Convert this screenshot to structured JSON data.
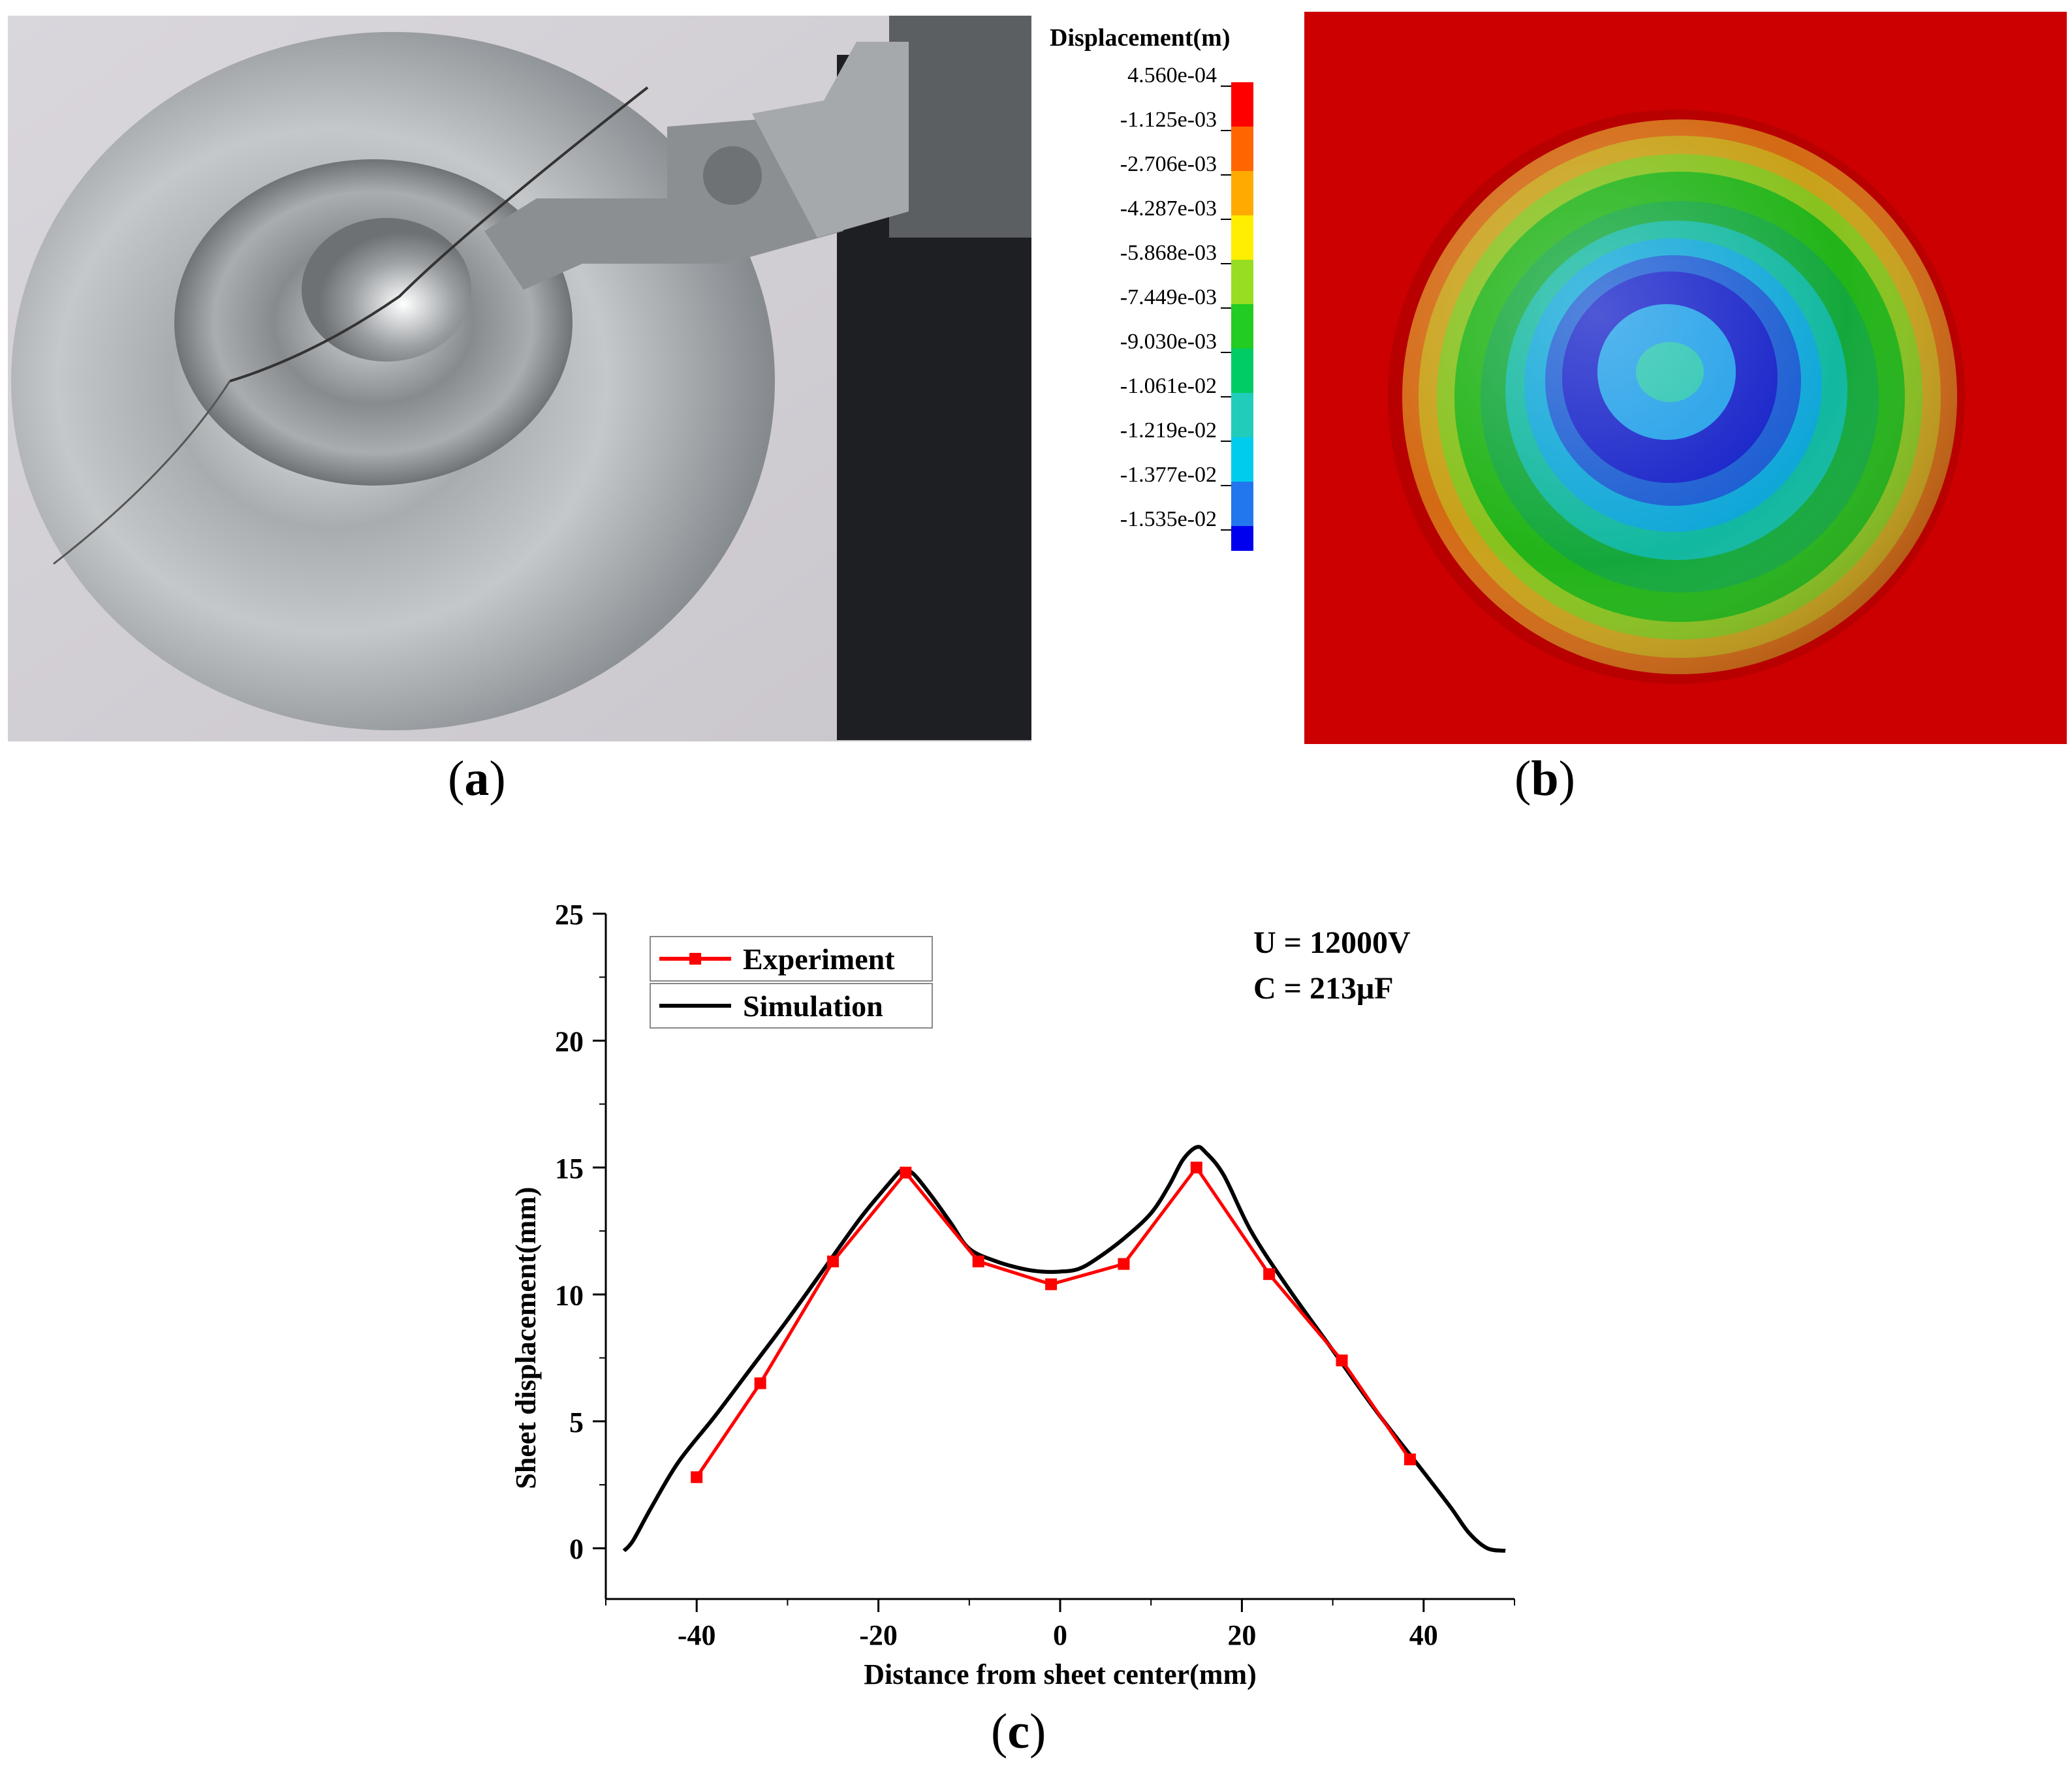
{
  "panels": {
    "a": {
      "caption_open": "(",
      "caption_letter": "a",
      "caption_close": ")"
    },
    "b": {
      "caption_open": "(",
      "caption_letter": "b",
      "caption_close": ")"
    },
    "c": {
      "caption_open": "(",
      "caption_letter": "c",
      "caption_close": ")"
    }
  },
  "colorbar": {
    "title": "Displacement(m)",
    "labels": [
      "4.560e-04",
      "-1.125e-03",
      "-2.706e-03",
      "-4.287e-03",
      "-5.868e-03",
      "-7.449e-03",
      "-9.030e-03",
      "-1.061e-02",
      "-1.219e-02",
      "-1.377e-02",
      "-1.535e-02"
    ],
    "colors": [
      "#ff0000",
      "#ff6600",
      "#ffaa00",
      "#ffee00",
      "#99dd22",
      "#22cc22",
      "#00cc66",
      "#22ccbb",
      "#00ccee",
      "#2277ee",
      "#0000ee"
    ]
  },
  "chart_data": {
    "type": "line",
    "xlabel": "Distance from sheet center(mm)",
    "ylabel": "Sheet displacement(mm)",
    "xlim": [
      -50,
      50
    ],
    "ylim": [
      -2,
      25
    ],
    "xticks": [
      -40,
      -20,
      0,
      20,
      40
    ],
    "yticks": [
      0,
      5,
      10,
      15,
      20,
      25
    ],
    "legend_position": "top-left",
    "annotations": [
      "U = 12000V",
      "C =  213μF"
    ],
    "series": [
      {
        "name": "Experiment",
        "color": "#ff0000",
        "marker": "square",
        "x": [
          -40.0,
          -33.0,
          -25.0,
          -17.0,
          -9.0,
          -1.0,
          7.0,
          15.0,
          23.0,
          31.0,
          38.5
        ],
        "y": [
          2.8,
          6.5,
          11.3,
          14.8,
          11.3,
          10.4,
          11.2,
          15.0,
          10.8,
          7.4,
          3.5
        ]
      },
      {
        "name": "Simulation",
        "color": "#000000",
        "marker": "none",
        "x": [
          -48,
          -47,
          -45,
          -42,
          -38,
          -34,
          -30,
          -26,
          -22,
          -19,
          -17.5,
          -17,
          -16,
          -14,
          -12,
          -10,
          -7,
          -4,
          -2,
          0,
          2,
          4,
          7,
          10,
          12,
          13.5,
          15,
          16,
          18,
          21,
          25,
          30,
          35,
          40,
          43,
          45,
          47,
          49
        ],
        "y": [
          -0.1,
          0.3,
          1.6,
          3.4,
          5.2,
          7.1,
          9.0,
          11.0,
          13.0,
          14.3,
          14.9,
          14.9,
          14.7,
          13.8,
          12.8,
          11.8,
          11.3,
          11.0,
          10.9,
          10.9,
          11.0,
          11.4,
          12.2,
          13.2,
          14.3,
          15.3,
          15.8,
          15.6,
          14.7,
          12.5,
          10.3,
          7.8,
          5.3,
          3.0,
          1.6,
          0.6,
          0.0,
          -0.1
        ]
      }
    ]
  }
}
